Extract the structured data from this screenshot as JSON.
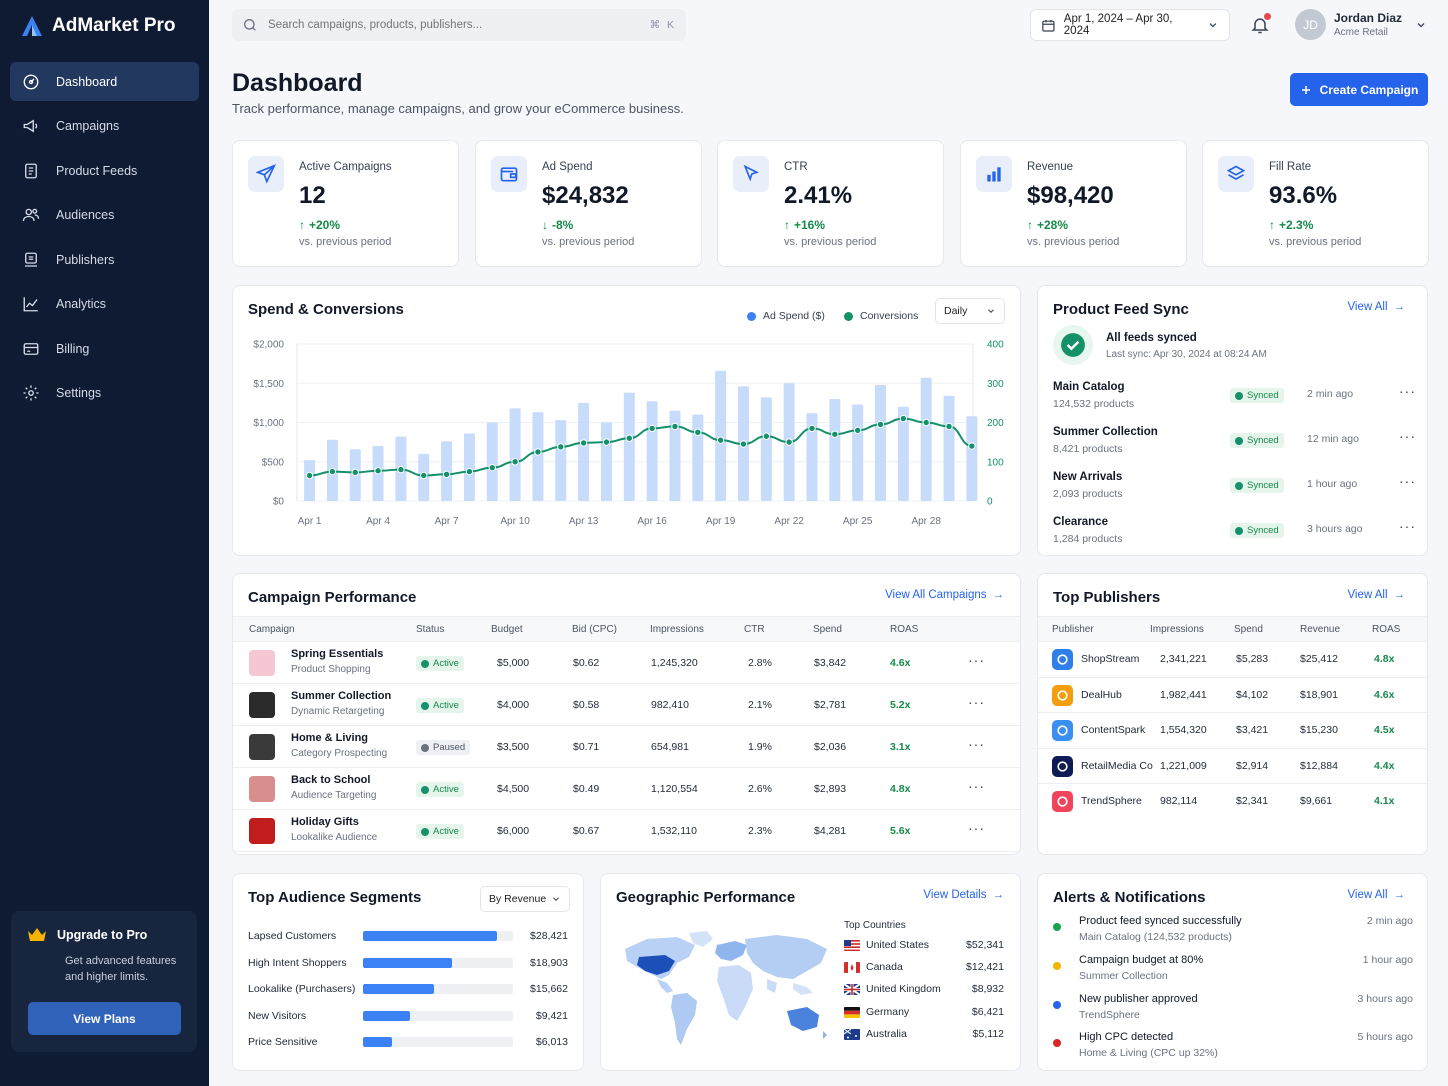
{
  "app": {
    "name": "AdMarket Pro"
  },
  "nav": [
    {
      "label": "Dashboard",
      "icon": "dashboard-icon",
      "active": true
    },
    {
      "label": "Campaigns",
      "icon": "megaphone-icon"
    },
    {
      "label": "Product Feeds",
      "icon": "product-feed-icon"
    },
    {
      "label": "Audiences",
      "icon": "users-icon"
    },
    {
      "label": "Publishers",
      "icon": "publishers-icon"
    },
    {
      "label": "Analytics",
      "icon": "analytics-icon"
    },
    {
      "label": "Billing",
      "icon": "credit-card-icon"
    },
    {
      "label": "Settings",
      "icon": "gear-icon"
    }
  ],
  "upgrade": {
    "title": "Upgrade to Pro",
    "desc": "Get advanced features and higher limits.",
    "button": "View Plans"
  },
  "search": {
    "placeholder": "Search campaigns, products, publishers...",
    "shortcut": "⌘ K"
  },
  "date_range": "Apr 1, 2024 – Apr 30, 2024",
  "user": {
    "initials": "JD",
    "name": "Jordan Diaz",
    "org": "Acme Retail"
  },
  "header": {
    "title": "Dashboard",
    "subtitle": "Track performance, manage campaigns, and grow your eCommerce business.",
    "create_button": "Create Campaign"
  },
  "kpis": [
    {
      "label": "Active Campaigns",
      "value": "12",
      "delta": "+20%",
      "dir": "up",
      "foot": "vs. previous period",
      "icon": "paper-plane-icon"
    },
    {
      "label": "Ad Spend",
      "value": "$24,832",
      "delta": "-8%",
      "dir": "down",
      "foot": "vs. previous period",
      "icon": "wallet-icon"
    },
    {
      "label": "CTR",
      "value": "2.41%",
      "delta": "+16%",
      "dir": "up",
      "foot": "vs. previous period",
      "icon": "cursor-click-icon"
    },
    {
      "label": "Revenue",
      "value": "$98,420",
      "delta": "+28%",
      "dir": "up",
      "foot": "vs. previous period",
      "icon": "bar-chart-icon"
    },
    {
      "label": "Fill Rate",
      "value": "93.6%",
      "delta": "+2.3%",
      "dir": "up",
      "foot": "vs. previous period",
      "icon": "layers-icon"
    }
  ],
  "spend_chart": {
    "title": "Spend & Conversions",
    "legend": [
      "Ad Spend ($)",
      "Conversions"
    ],
    "period": "Daily",
    "colors": {
      "spend": "#c7dbfa",
      "conversions": "#15916a"
    }
  },
  "chart_data": {
    "type": "bar",
    "x": [
      "Apr 1",
      "Apr 2",
      "Apr 3",
      "Apr 4",
      "Apr 5",
      "Apr 6",
      "Apr 7",
      "Apr 8",
      "Apr 9",
      "Apr 10",
      "Apr 11",
      "Apr 12",
      "Apr 13",
      "Apr 14",
      "Apr 15",
      "Apr 16",
      "Apr 17",
      "Apr 18",
      "Apr 19",
      "Apr 20",
      "Apr 21",
      "Apr 22",
      "Apr 23",
      "Apr 24",
      "Apr 25",
      "Apr 26",
      "Apr 27",
      "Apr 28",
      "Apr 29",
      "Apr 30"
    ],
    "x_tick_labels": [
      "Apr 1",
      "Apr 4",
      "Apr 7",
      "Apr 10",
      "Apr 13",
      "Apr 16",
      "Apr 19",
      "Apr 22",
      "Apr 25",
      "Apr 28"
    ],
    "series": [
      {
        "name": "Ad Spend ($)",
        "type": "bar",
        "axis": "left",
        "values": [
          520,
          780,
          660,
          700,
          820,
          600,
          760,
          860,
          1000,
          1180,
          1130,
          1030,
          1250,
          1000,
          1380,
          1270,
          1150,
          1100,
          1660,
          1460,
          1320,
          1500,
          1120,
          1300,
          1230,
          1480,
          1200,
          1570,
          1340,
          1080
        ]
      },
      {
        "name": "Conversions",
        "type": "line",
        "axis": "right",
        "values": [
          65,
          75,
          73,
          77,
          80,
          65,
          68,
          75,
          85,
          100,
          125,
          138,
          148,
          150,
          160,
          185,
          190,
          175,
          155,
          145,
          165,
          150,
          185,
          170,
          180,
          195,
          210,
          200,
          190,
          140
        ]
      }
    ],
    "y_left": {
      "ticks": [
        "$0",
        "$500",
        "$1,000",
        "$1,500",
        "$2,000"
      ],
      "range": [
        0,
        2000
      ]
    },
    "y_right": {
      "ticks": [
        "0",
        "100",
        "200",
        "300",
        "400"
      ],
      "range": [
        0,
        400
      ]
    },
    "grid": true,
    "legend_position": "top-right"
  },
  "feed_sync": {
    "title": "Product Feed Sync",
    "view_all": "View All",
    "status_title": "All feeds synced",
    "status_sub": "Last sync: Apr 30, 2024 at 08:24 AM",
    "feeds": [
      {
        "name": "Main Catalog",
        "count": "124,532 products",
        "status": "Synced",
        "time": "2 min ago"
      },
      {
        "name": "Summer Collection",
        "count": "8,421 products",
        "status": "Synced",
        "time": "12 min ago"
      },
      {
        "name": "New Arrivals",
        "count": "2,093 products",
        "status": "Synced",
        "time": "1 hour ago"
      },
      {
        "name": "Clearance",
        "count": "1,284 products",
        "status": "Synced",
        "time": "3 hours ago"
      }
    ]
  },
  "campaigns": {
    "title": "Campaign Performance",
    "view_all": "View All Campaigns",
    "columns": [
      "Campaign",
      "Status",
      "Budget",
      "Bid (CPC)",
      "Impressions",
      "CTR",
      "Spend",
      "ROAS"
    ],
    "rows": [
      {
        "name": "Spring Essentials",
        "type": "Product Shopping",
        "status": "Active",
        "budget": "$5,000",
        "bid": "$0.62",
        "impressions": "1,245,320",
        "ctr": "2.8%",
        "spend": "$3,842",
        "roas": "4.6x",
        "thumb": "#f6c7d3"
      },
      {
        "name": "Summer Collection",
        "type": "Dynamic Retargeting",
        "status": "Active",
        "budget": "$4,000",
        "bid": "$0.58",
        "impressions": "982,410",
        "ctr": "2.1%",
        "spend": "$2,781",
        "roas": "5.2x",
        "thumb": "#2b2b2b"
      },
      {
        "name": "Home & Living",
        "type": "Category Prospecting",
        "status": "Paused",
        "budget": "$3,500",
        "bid": "$0.71",
        "impressions": "654,981",
        "ctr": "1.9%",
        "spend": "$2,036",
        "roas": "3.1x",
        "thumb": "#3a3a3a"
      },
      {
        "name": "Back to School",
        "type": "Audience Targeting",
        "status": "Active",
        "budget": "$4,500",
        "bid": "$0.49",
        "impressions": "1,120,554",
        "ctr": "2.6%",
        "spend": "$2,893",
        "roas": "4.8x",
        "thumb": "#d98e8e"
      },
      {
        "name": "Holiday Gifts",
        "type": "Lookalike Audience",
        "status": "Active",
        "budget": "$6,000",
        "bid": "$0.67",
        "impressions": "1,532,110",
        "ctr": "2.3%",
        "spend": "$4,281",
        "roas": "5.6x",
        "thumb": "#c21d1d"
      }
    ]
  },
  "publishers": {
    "title": "Top Publishers",
    "view_all": "View All",
    "columns": [
      "Publisher",
      "Impressions",
      "Spend",
      "Revenue",
      "ROAS"
    ],
    "rows": [
      {
        "name": "ShopStream",
        "impressions": "2,341,221",
        "spend": "$5,283",
        "revenue": "$25,412",
        "roas": "4.8x",
        "color": "#2f7fe8"
      },
      {
        "name": "DealHub",
        "impressions": "1,982,441",
        "spend": "$4,102",
        "revenue": "$18,901",
        "roas": "4.6x",
        "color": "#f59e0b"
      },
      {
        "name": "ContentSpark",
        "impressions": "1,554,320",
        "spend": "$3,421",
        "revenue": "$15,230",
        "roas": "4.5x",
        "color": "#3b8ff0"
      },
      {
        "name": "RetailMedia Co",
        "impressions": "1,221,009",
        "spend": "$2,914",
        "revenue": "$12,884",
        "roas": "4.4x",
        "color": "#0f1b55"
      },
      {
        "name": "TrendSphere",
        "impressions": "982,114",
        "spend": "$2,341",
        "revenue": "$9,661",
        "roas": "4.1x",
        "color": "#f0445c"
      }
    ]
  },
  "segments": {
    "title": "Top Audience Segments",
    "sort": "By Revenue",
    "rows": [
      {
        "label": "Lapsed Customers",
        "value": "$28,421",
        "pct": 0.89
      },
      {
        "label": "High Intent Shoppers",
        "value": "$18,903",
        "pct": 0.59
      },
      {
        "label": "Lookalike (Purchasers)",
        "value": "$15,662",
        "pct": 0.47
      },
      {
        "label": "New Visitors",
        "value": "$9,421",
        "pct": 0.31
      },
      {
        "label": "Price Sensitive",
        "value": "$6,013",
        "pct": 0.19
      }
    ]
  },
  "geo": {
    "title": "Geographic Performance",
    "view_details": "View Details",
    "list_title": "Top Countries",
    "countries": [
      {
        "name": "United States",
        "value": "$52,341",
        "flag": "us"
      },
      {
        "name": "Canada",
        "value": "$12,421",
        "flag": "ca"
      },
      {
        "name": "United Kingdom",
        "value": "$8,932",
        "flag": "uk"
      },
      {
        "name": "Germany",
        "value": "$6,421",
        "flag": "de"
      },
      {
        "name": "Australia",
        "value": "$5,112",
        "flag": "au"
      }
    ]
  },
  "alerts": {
    "title": "Alerts & Notifications",
    "view_all": "View All",
    "items": [
      {
        "title": "Product feed synced successfully",
        "sub": "Main Catalog (124,532 products)",
        "time": "2 min ago",
        "color": "#16a34a"
      },
      {
        "title": "Campaign budget at 80%",
        "sub": "Summer Collection",
        "time": "1 hour ago",
        "color": "#f5b400"
      },
      {
        "title": "New publisher approved",
        "sub": "TrendSphere",
        "time": "3 hours ago",
        "color": "#2563eb"
      },
      {
        "title": "High CPC detected",
        "sub": "Home & Living (CPC up 32%)",
        "time": "5 hours ago",
        "color": "#dc2626"
      }
    ]
  }
}
